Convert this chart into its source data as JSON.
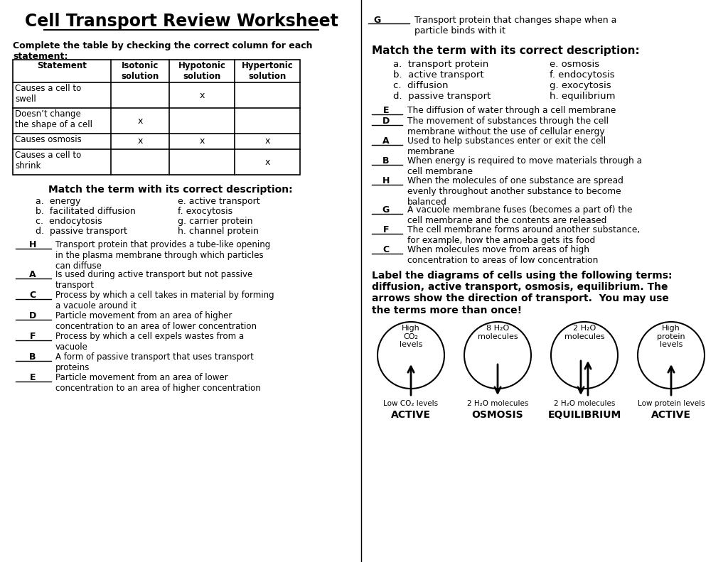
{
  "title": "Cell Transport Review Worksheet",
  "bg_color": "#ffffff",
  "text_color": "#000000",
  "left_col": {
    "table_instruction": "Complete the table by checking the correct column for each\nstatement:",
    "table_headers": [
      "Statement",
      "Isotonic\nsolution",
      "Hypotonic\nsolution",
      "Hypertonic\nsolution"
    ],
    "table_rows": [
      [
        "Causes a cell to\nswell",
        "",
        "x",
        ""
      ],
      [
        "Doesn’t change\nthe shape of a cell",
        "x",
        "",
        ""
      ],
      [
        "Causes osmosis",
        "x",
        "x",
        "x"
      ],
      [
        "Causes a cell to\nshrink",
        "",
        "",
        "x"
      ]
    ],
    "match1_title": "Match the term with its correct description:",
    "match1_terms_left": [
      "a.  energy",
      "b.  facilitated diffusion",
      "c.  endocytosis",
      "d.  passive transport"
    ],
    "match1_terms_right": [
      "e. active transport",
      "f. exocytosis",
      "g. carrier protein",
      "h. channel protein"
    ],
    "match1_answers": [
      [
        "H",
        "Transport protein that provides a tube-like opening\nin the plasma membrane through which particles\ncan diffuse"
      ],
      [
        "A",
        "Is used during active transport but not passive\ntransport"
      ],
      [
        "C",
        "Process by which a cell takes in material by forming\na vacuole around it"
      ],
      [
        "D",
        "Particle movement from an area of higher\nconcentration to an area of lower concentration"
      ],
      [
        "F",
        "Process by which a cell expels wastes from a\nvacuole"
      ],
      [
        "B",
        "A form of passive transport that uses transport\nproteins"
      ],
      [
        "E",
        "Particle movement from an area of lower\nconcentration to an area of higher concentration"
      ]
    ]
  },
  "right_col": {
    "top_answer": [
      "G",
      "Transport protein that changes shape when a\nparticle binds with it"
    ],
    "match2_title": "Match the term with its correct description:",
    "match2_terms_left": [
      "a.  transport protein",
      "b.  active transport",
      "c.  diffusion",
      "d.  passive transport"
    ],
    "match2_terms_right": [
      "e. osmosis",
      "f. endocytosis",
      "g. exocytosis",
      "h. equilibrium"
    ],
    "match2_answers": [
      [
        "E",
        "The diffusion of water through a cell membrane"
      ],
      [
        "D",
        "The movement of substances through the cell\nmembrane without the use of cellular energy"
      ],
      [
        "A",
        "Used to help substances enter or exit the cell\nmembrane"
      ],
      [
        "B",
        "When energy is required to move materials through a\ncell membrane"
      ],
      [
        "H",
        "When the molecules of one substance are spread\nevenly throughout another substance to become\nbalanced"
      ],
      [
        "G",
        "A vacuole membrane fuses (becomes a part of) the\ncell membrane and the contents are released"
      ],
      [
        "F",
        "The cell membrane forms around another substance,\nfor example, how the amoeba gets its food"
      ],
      [
        "C",
        "When molecules move from areas of high\nconcentration to areas of low concentration"
      ]
    ],
    "diagram_title": "Label the diagrams of cells using the following terms:\ndiffusion, active transport, osmosis, equilibrium. The\narrows show the direction of transport.  You may use\nthe terms more than once!",
    "diagrams": [
      {
        "top_label": "High\nCO₂\nlevels",
        "bottom_label": "Low CO₂ levels",
        "arrow": "up",
        "term": "ACTIVE"
      },
      {
        "top_label": "8 H₂O\nmolecules",
        "bottom_label": "2 H₂O molecules",
        "arrow": "down",
        "term": "OSMOSIS"
      },
      {
        "top_label": "2 H₂O\nmolecules",
        "bottom_label": "2 H₂O molecules",
        "arrow": "both",
        "term": "EQUILIBRIUM"
      },
      {
        "top_label": "High\nprotein\nlevels",
        "bottom_label": "Low protein levels",
        "arrow": "up",
        "term": "ACTIVE"
      }
    ]
  }
}
